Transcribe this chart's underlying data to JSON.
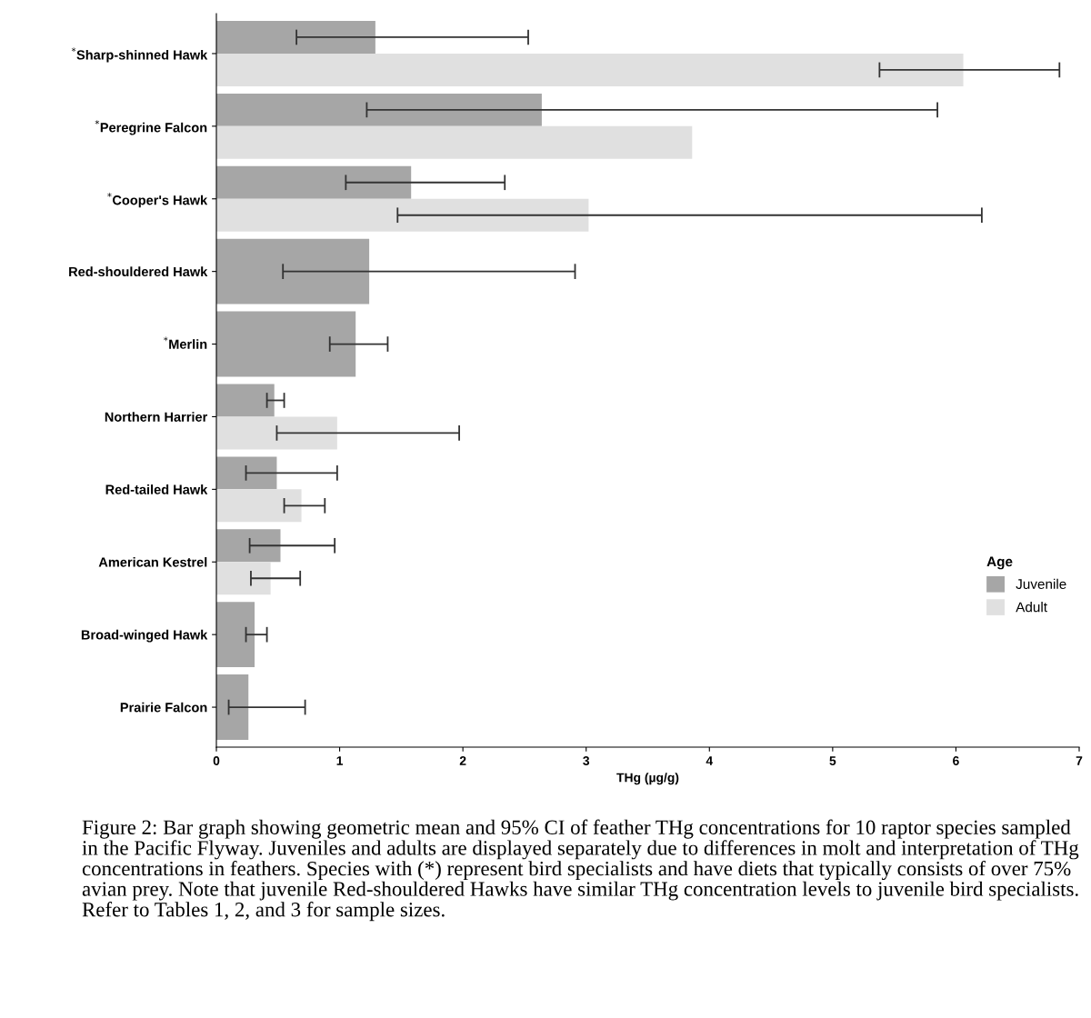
{
  "chart_data": {
    "type": "bar",
    "orientation": "horizontal",
    "xlabel": "THg (µg/g)",
    "legend_title": "Age",
    "legend": "right",
    "grid": false,
    "categories": [
      "$^{*}$Sharp-shinned Hawk",
      "$^{*}$Peregrine Falcon",
      "$^{*}$Cooper's Hawk",
      "Red-shouldered Hawk",
      "$^{*}$Merlin",
      "Northern Harrier",
      "Red-tailed Hawk",
      "American Kestrel",
      "Broad-winged Hawk",
      "Prairie Falcon"
    ],
    "series": [
      {
        "name": "Juvenile",
        "color": "#a6a6a6",
        "values": [
          1.29,
          2.64,
          1.58,
          1.24,
          1.13,
          0.47,
          0.49,
          0.52,
          0.31,
          0.26
        ],
        "errors": [
          [
            0.65,
            2.53
          ],
          [
            1.22,
            5.85
          ],
          [
            1.05,
            2.34
          ],
          [
            0.54,
            2.91
          ],
          [
            0.92,
            1.39
          ],
          [
            0.41,
            0.55
          ],
          [
            0.24,
            0.98
          ],
          [
            0.27,
            0.96
          ],
          [
            0.24,
            0.41
          ],
          [
            0.1,
            0.72
          ]
        ]
      },
      {
        "name": "Adult",
        "color": "#e0e0e0",
        "values": [
          6.06,
          3.86,
          3.02,
          null,
          null,
          0.98,
          0.69,
          0.44,
          null,
          null
        ],
        "errors": [
          [
            5.38,
            6.84
          ],
          null,
          [
            1.47,
            6.21
          ],
          null,
          null,
          [
            0.49,
            1.97
          ],
          [
            0.55,
            0.88
          ],
          [
            0.28,
            0.68
          ],
          null,
          null
        ]
      }
    ],
    "xlim": [
      0,
      7
    ],
    "xticks": [
      0,
      1,
      2,
      3,
      4,
      5,
      6,
      7
    ],
    "annotations": [
      "Figure 2: Bar graph showing geometric mean and 95% CI of feather THg concentrations for 10 raptor species sampled in the Pacific Flyway. Juveniles and adults are displayed separately due to differences in molt and interpretation of THg concentrations in feathers. Species with (*) represent bird specialists and have diets that typically consists of over 75% avian prey. Note that juvenile Red-shouldered Hawks have similar THg concentration levels to juvenile bird specialists. Refer to Tables 1, 2, and 3 for sample sizes."
    ]
  }
}
